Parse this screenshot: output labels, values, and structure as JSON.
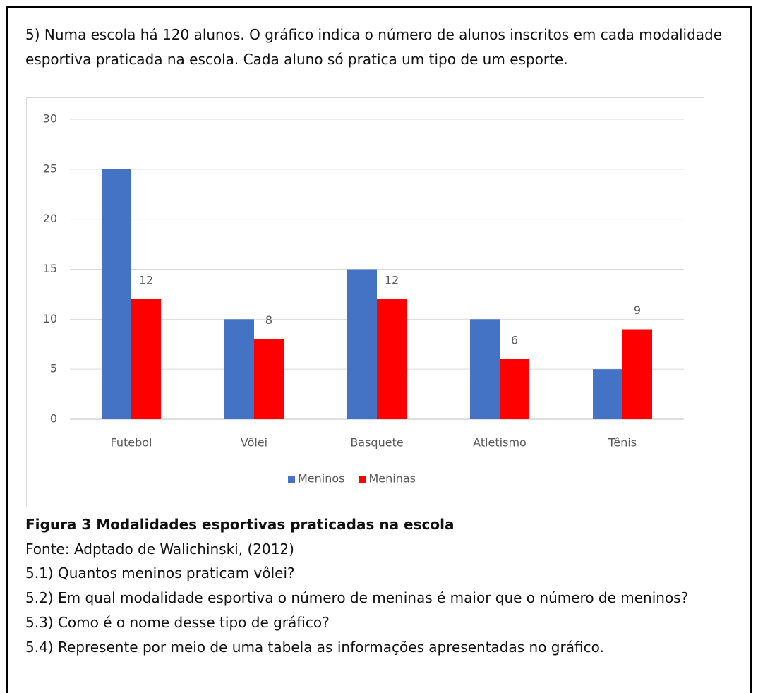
{
  "question": "5) Numa escola há 120 alunos. O gráfico indica o número de alunos inscritos em cada modalidade esportiva praticada na escola. Cada aluno só pratica um tipo de um esporte.",
  "chart_data": {
    "type": "bar",
    "categories": [
      "Futebol",
      "Vôlei",
      "Basquete",
      "Atletismo",
      "Tênis"
    ],
    "series": [
      {
        "name": "Meninos",
        "color": "#4472c4",
        "values": [
          25,
          10,
          15,
          10,
          5
        ]
      },
      {
        "name": "Meninas",
        "color": "#ff0000",
        "values": [
          12,
          8,
          12,
          6,
          9
        ],
        "show_labels": true
      }
    ],
    "ylim": [
      0,
      30
    ],
    "yticks": [
      0,
      5,
      10,
      15,
      20,
      25,
      30
    ],
    "grid": true,
    "legend": "bottom"
  },
  "caption": "Figura 3 Modalidades esportivas praticadas na escola",
  "source": "Fonte: Adptado de Walichinski, (2012)",
  "questions": [
    "5.1) Quantos meninos praticam vôlei?",
    "5.2) Em qual modalidade esportiva o número de meninas é maior que o número de meninos?",
    "5.3) Como é o nome desse tipo de gráfico?",
    "5.4) Represente por meio de uma tabela as informações apresentadas no gráfico."
  ]
}
